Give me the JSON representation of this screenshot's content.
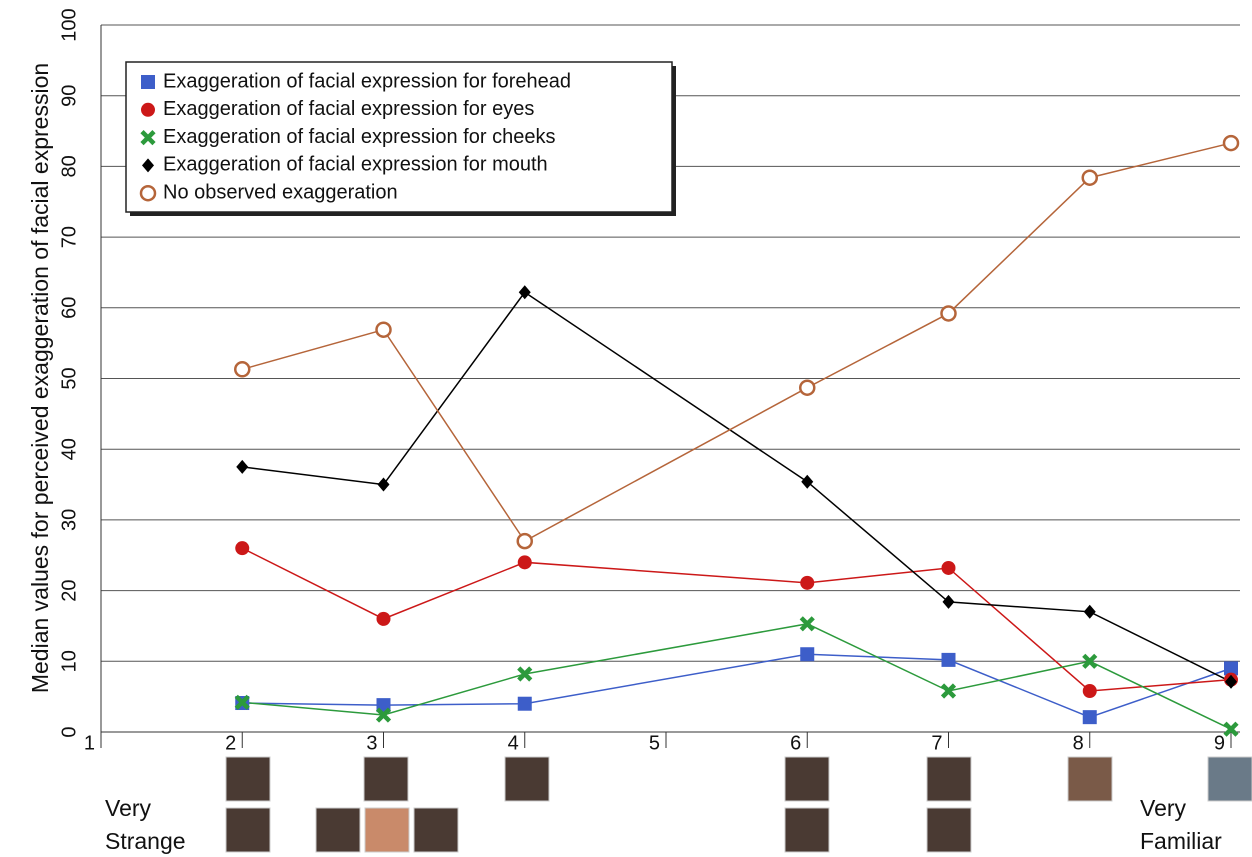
{
  "chart_data": {
    "type": "line",
    "y_label": "Median values for perceived exaggeration of facial expression",
    "x": [
      2,
      3,
      4,
      6,
      7,
      8,
      9
    ],
    "series": [
      {
        "name": "Exaggeration of facial expression for forehead",
        "color": "#3d5ec9",
        "marker": "square",
        "values": [
          4.1,
          3.8,
          4,
          11,
          10.2,
          2.1,
          9
        ]
      },
      {
        "name": "Exaggeration of facial expression for eyes",
        "color": "#cc1818",
        "marker": "circle",
        "values": [
          26,
          16,
          24,
          21.1,
          23.2,
          5.8,
          7.4
        ]
      },
      {
        "name": "Exaggeration of facial expression for cheeks",
        "color": "#2c9a3c",
        "marker": "x",
        "values": [
          4.2,
          2.4,
          8.2,
          15.3,
          5.8,
          10,
          0.4
        ]
      },
      {
        "name": "Exaggeration of facial expression for mouth",
        "color": "#000000",
        "marker": "diamond",
        "values": [
          37.5,
          35,
          62.2,
          35.4,
          18.4,
          17,
          7.1
        ]
      },
      {
        "name": "No observed exaggeration",
        "color": "#b5653a",
        "marker": "open-circle",
        "values": [
          51.3,
          56.9,
          27,
          48.7,
          59.2,
          78.4,
          83.3
        ]
      }
    ],
    "xlim": [
      1,
      9
    ],
    "xticks": [
      1,
      2,
      3,
      4,
      5,
      6,
      7,
      8,
      9
    ],
    "ylim": [
      0,
      100
    ],
    "yticks": [
      0,
      10,
      20,
      30,
      40,
      50,
      60,
      70,
      80,
      90,
      100
    ],
    "grid": true,
    "annotations": [
      [
        "Very",
        "Strange"
      ],
      [
        "Very",
        "Familiar"
      ]
    ]
  }
}
